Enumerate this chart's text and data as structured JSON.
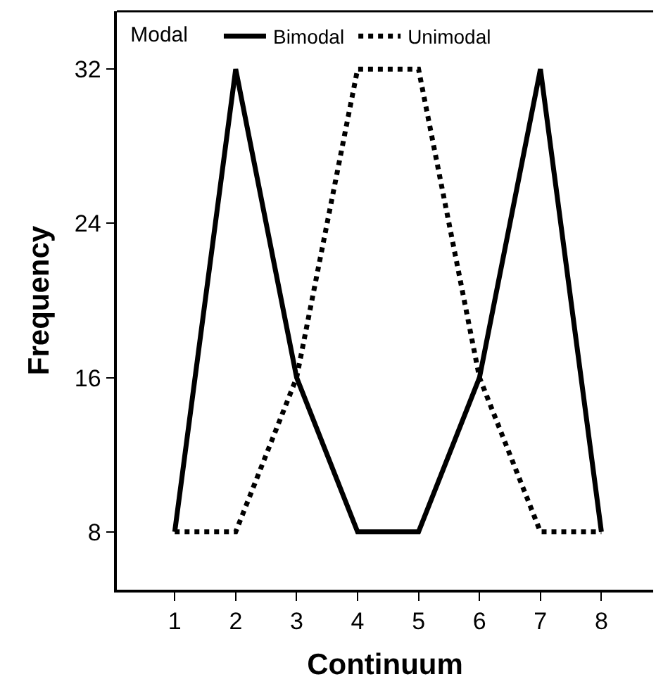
{
  "chart_data": {
    "type": "line",
    "xlabel": "Continuum",
    "ylabel": "Frequency",
    "legend_title": "Modal",
    "x": [
      1,
      2,
      3,
      4,
      5,
      6,
      7,
      8
    ],
    "series": [
      {
        "name": "Bimodal",
        "color": "#000000",
        "line_style": "solid",
        "values": [
          8,
          32,
          16,
          8,
          8,
          16,
          32,
          8
        ]
      },
      {
        "name": "Unimodal",
        "color": "#000000",
        "line_style": "dotted",
        "values": [
          8,
          8,
          16,
          32,
          32,
          16,
          8,
          8
        ]
      }
    ],
    "xlim": [
      0.05,
      8.85
    ],
    "xticks": [
      1,
      2,
      3,
      4,
      5,
      6,
      7,
      8
    ],
    "ylim": [
      5,
      35
    ],
    "yticks": [
      8,
      16,
      24,
      32
    ],
    "legend": "top left",
    "marker": "none"
  }
}
